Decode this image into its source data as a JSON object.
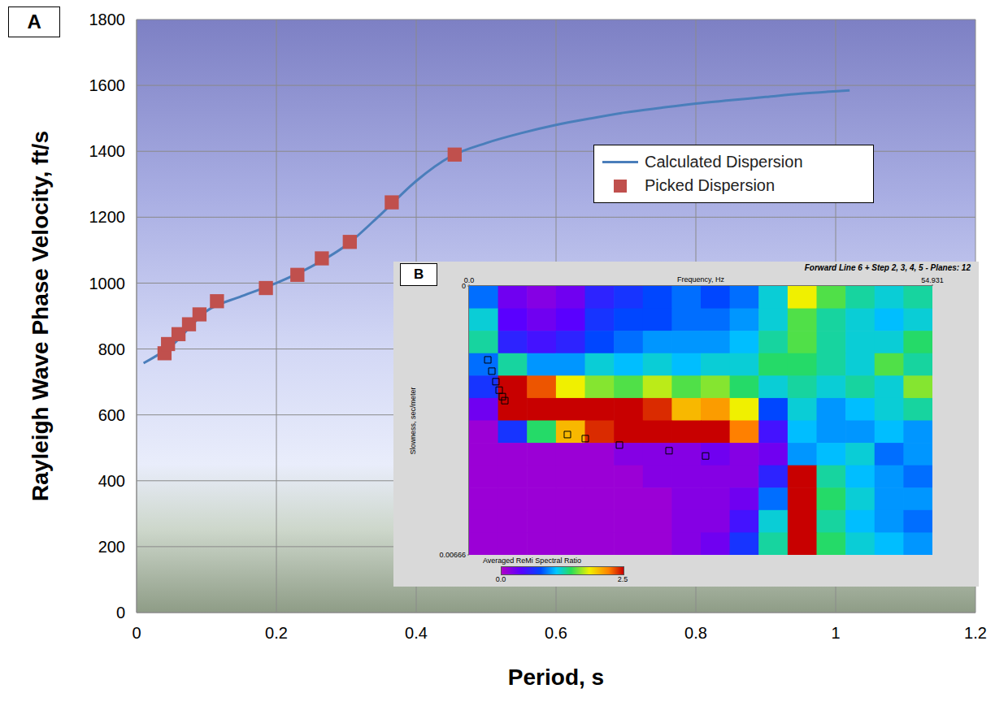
{
  "chart_data": [
    {
      "type": "line",
      "panel": "A",
      "x_label": "Period, s",
      "y_label": "Rayleigh Wave Phase Velocity, ft/s",
      "xlim": [
        0,
        1.2
      ],
      "xticks": [
        0,
        0.2,
        0.4,
        0.6,
        0.8,
        1,
        1.2
      ],
      "ylim": [
        0,
        1800
      ],
      "yticks": [
        0,
        200,
        400,
        600,
        800,
        1000,
        1200,
        1400,
        1600,
        1800
      ],
      "grid": true,
      "legend": "upper right",
      "series": [
        {
          "name": "Calculated Dispersion",
          "type": "line",
          "color": "#4a7ebb",
          "x": [
            0.01,
            0.05,
            0.1,
            0.15,
            0.2,
            0.25,
            0.3,
            0.35,
            0.4,
            0.45,
            0.5,
            0.55,
            0.6,
            0.65,
            0.7,
            0.75,
            0.8,
            0.85,
            0.9,
            0.95,
            1.02
          ],
          "values": [
            757,
            810,
            915,
            960,
            1000,
            1050,
            1115,
            1210,
            1310,
            1385,
            1425,
            1455,
            1480,
            1500,
            1518,
            1532,
            1545,
            1555,
            1565,
            1575,
            1585
          ]
        },
        {
          "name": "Picked Dispersion",
          "type": "scatter",
          "marker": "square",
          "color": "#c0504d",
          "x": [
            0.04,
            0.045,
            0.06,
            0.075,
            0.09,
            0.115,
            0.185,
            0.23,
            0.265,
            0.305,
            0.365,
            0.455
          ],
          "values": [
            787,
            815,
            845,
            875,
            905,
            945,
            985,
            1025,
            1075,
            1125,
            1245,
            1390
          ]
        }
      ]
    },
    {
      "type": "heatmap",
      "panel": "B",
      "title": "Forward Line 6 + Step 2, 3, 4, 5 - Planes: 12",
      "x_label": "Frequency, Hz",
      "y_label": "Slowness, sec/meter",
      "xlim": [
        0,
        54.931
      ],
      "xticks": [
        {
          "value": 0,
          "label": "0.0"
        },
        54.931
      ],
      "ylim": [
        0,
        0.00666
      ],
      "yticks": [
        0,
        0.00666
      ],
      "cells": [
        [
          0.9,
          0.3,
          0.2,
          0.3,
          0.6,
          0.7,
          0.8,
          0.9,
          0.8,
          0.9,
          1.2,
          1.8,
          1.5,
          1.3,
          1.2,
          1.3
        ],
        [
          1.2,
          0.4,
          0.3,
          0.4,
          0.7,
          0.8,
          0.8,
          0.9,
          0.9,
          1.0,
          1.2,
          1.5,
          1.3,
          1.2,
          1.1,
          1.2
        ],
        [
          1.3,
          0.6,
          0.5,
          0.6,
          0.8,
          0.9,
          1.0,
          1.0,
          1.0,
          1.1,
          1.3,
          1.5,
          1.3,
          1.2,
          1.2,
          1.4
        ],
        [
          0.9,
          1.3,
          1.0,
          1.0,
          1.2,
          1.1,
          1.2,
          1.1,
          1.2,
          1.2,
          1.4,
          1.4,
          1.3,
          1.2,
          1.5,
          1.3
        ],
        [
          0.7,
          2.5,
          2.3,
          1.8,
          1.6,
          1.5,
          1.7,
          1.5,
          1.6,
          1.4,
          1.2,
          1.3,
          1.2,
          1.3,
          1.2,
          1.6
        ],
        [
          0.3,
          2.5,
          2.5,
          2.5,
          2.5,
          2.5,
          2.4,
          2.0,
          2.1,
          1.8,
          0.8,
          1.2,
          1.0,
          1.1,
          1.2,
          1.3
        ],
        [
          0.1,
          0.7,
          1.4,
          2.0,
          2.4,
          2.5,
          2.5,
          2.5,
          2.5,
          2.2,
          0.5,
          1.1,
          1.0,
          1.0,
          1.1,
          1.0
        ],
        [
          0.1,
          0.1,
          0.1,
          0.1,
          0.1,
          0.2,
          0.2,
          0.2,
          0.3,
          0.2,
          0.3,
          1.0,
          1.1,
          1.2,
          0.9,
          1.0
        ],
        [
          0.1,
          0.1,
          0.1,
          0.1,
          0.1,
          0.1,
          0.2,
          0.2,
          0.2,
          0.2,
          0.6,
          2.5,
          1.3,
          1.1,
          1.0,
          0.9
        ],
        [
          0.1,
          0.1,
          0.1,
          0.1,
          0.1,
          0.1,
          0.1,
          0.2,
          0.2,
          0.3,
          0.9,
          2.5,
          1.4,
          1.2,
          1.0,
          1.0
        ],
        [
          0.1,
          0.1,
          0.1,
          0.1,
          0.1,
          0.1,
          0.1,
          0.2,
          0.2,
          0.5,
          1.2,
          2.5,
          1.3,
          1.1,
          1.0,
          0.9
        ],
        [
          0.1,
          0.1,
          0.1,
          0.1,
          0.1,
          0.1,
          0.1,
          0.2,
          0.3,
          0.7,
          1.3,
          2.5,
          1.4,
          1.2,
          1.1,
          1.0
        ]
      ],
      "colorbar_label": "Averaged ReMi Spectral Ratio",
      "colorbar_lim": [
        0,
        2.5
      ],
      "colorbar_ticks": [
        {
          "value": 0,
          "label": "0.0"
        },
        2.5
      ],
      "picks": {
        "marker": "square",
        "color": "#000000",
        "x": [
          2.22,
          2.7,
          3.18,
          3.57,
          3.95,
          4.24,
          11.66,
          13.78,
          17.83,
          23.71,
          28.04
        ],
        "values": [
          0.00183,
          0.00211,
          0.00237,
          0.00258,
          0.00274,
          0.00284,
          0.00368,
          0.00378,
          0.00394,
          0.00408,
          0.00421
        ]
      }
    }
  ]
}
